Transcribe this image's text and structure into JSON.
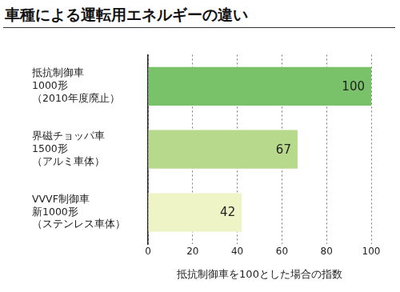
{
  "chart_data": {
    "type": "bar",
    "orientation": "horizontal",
    "title": "車種による運転用エネルギーの違い",
    "categories": [
      "抵抗制御車\n1000形\n（2010年度廃止）",
      "界磁チョッパ車\n1500形\n（アルミ車体）",
      "VVVF制御車\n新1000形\n（ステンレス車体）"
    ],
    "values": [
      100,
      67,
      42
    ],
    "colors": [
      "#79c26a",
      "#b7d98c",
      "#eef4c6"
    ],
    "x_label": "抵抗制御車を100とした場合の指数",
    "xlim": [
      0,
      100
    ],
    "xticks": [
      0,
      20,
      40,
      60,
      80,
      100
    ],
    "grid": true,
    "data_labels": true,
    "tick_labels": true
  }
}
